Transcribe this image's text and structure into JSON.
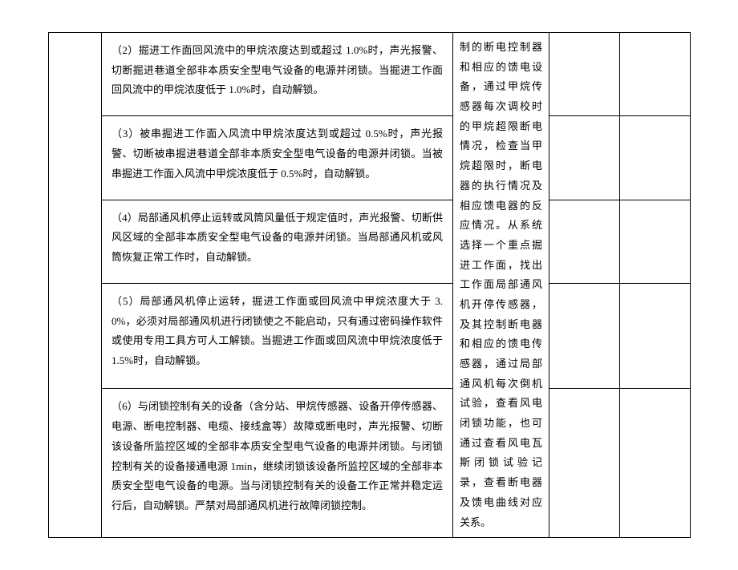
{
  "rows": {
    "r2": "（2）掘进工作面回风流中的甲烷浓度达到或超过 1.0%时，声光报警、切断掘进巷道全部非本质安全型电气设备的电源并闭锁。当掘进工作面回风流中的甲烷浓度低于 1.0%时，自动解锁。",
    "r3": "（3）被串掘进工作面入风流中甲烷浓度达到或超过 0.5%时，声光报警、切断被串掘进巷道全部非本质安全型电气设备的电源并闭锁。当被串掘进工作面入风流中甲烷浓度低于 0.5%时，自动解锁。",
    "r4": "（4）局部通风机停止运转或风筒风量低于规定值时，声光报警、切断供风区域的全部非本质安全型电气设备的电源并闭锁。当局部通风机或风筒恢复正常工作时，自动解锁。",
    "r5": "（5）局部通风机停止运转，掘进工作面或回风流中甲烷浓度大于 3.0%，必须对局部通风机进行闭锁使之不能启动，只有通过密码操作软件或使用专用工具方可人工解锁。当掘进工作面或回风流中甲烷浓度低于 1.5%时，自动解锁。",
    "r6": "（6）与闭锁控制有关的设备（含分站、甲烷传感器、设备开停传感器、电源、断电控制器、电缆、接线盒等）故障或断电时，声光报警、切断该设备所监控区域的全部非本质安全型电气设备的电源并闭锁。与闭锁控制有关的设备接通电源 1min，继续闭锁该设备所监控区域的全部非本质安全型电气设备的电源。当与闭锁控制有关的设备工作正常并稳定运行后，自动解锁。严禁对局部通风机进行故障闭锁控制。"
  },
  "side": "制的断电控制器和相应的馈电设备，通过甲烷传感器每次调校时的甲烷超限断电情况，检查当甲烷超限时，断电器的执行情况及相应馈电器的反应情况。从系统选择一个重点掘进工作面，找出工作面局部通风机开停传感器，及其控制断电器和相应的馈电传感器，通过局部通风机每次倒机试验，查看风电闭锁功能，也可通过查看风电瓦斯闭锁试验记录，查看断电器及馈电曲线对应关系。"
}
